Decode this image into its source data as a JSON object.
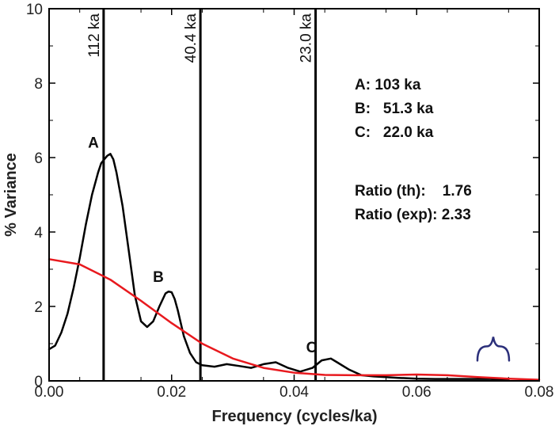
{
  "chart_data": {
    "type": "line",
    "title": "",
    "xlabel": "Frequency (cycles/ka)",
    "ylabel": "% Variance",
    "xlim": [
      0,
      0.08
    ],
    "ylim": [
      0,
      10
    ],
    "x_ticks": [
      "0.00",
      "0.02",
      "0.04",
      "0.06",
      "0.08"
    ],
    "y_ticks": [
      "0",
      "2",
      "4",
      "6",
      "8",
      "10"
    ],
    "grid": false,
    "series": [
      {
        "color": "#000000",
        "x": [
          0,
          0.001,
          0.002,
          0.003,
          0.004,
          0.005,
          0.006,
          0.007,
          0.008,
          0.0085,
          0.009,
          0.0095,
          0.01,
          0.0105,
          0.011,
          0.012,
          0.013,
          0.014,
          0.015,
          0.016,
          0.017,
          0.018,
          0.019,
          0.0195,
          0.02,
          0.0205,
          0.021,
          0.022,
          0.023,
          0.024,
          0.025,
          0.027,
          0.029,
          0.031,
          0.033,
          0.035,
          0.037,
          0.039,
          0.041,
          0.043,
          0.0445,
          0.046,
          0.047,
          0.049,
          0.051,
          0.053,
          0.055,
          0.057,
          0.06,
          0.063,
          0.066,
          0.069,
          0.072,
          0.075
        ],
        "values": [
          0.85,
          0.95,
          1.3,
          1.8,
          2.5,
          3.3,
          4.2,
          5.0,
          5.6,
          5.85,
          5.95,
          6.05,
          6.1,
          5.95,
          5.6,
          4.7,
          3.5,
          2.3,
          1.6,
          1.45,
          1.6,
          2.0,
          2.35,
          2.4,
          2.38,
          2.2,
          1.9,
          1.2,
          0.75,
          0.5,
          0.42,
          0.38,
          0.45,
          0.4,
          0.35,
          0.45,
          0.5,
          0.35,
          0.25,
          0.35,
          0.55,
          0.6,
          0.5,
          0.3,
          0.15,
          0.12,
          0.1,
          0.08,
          0.06,
          0.05,
          0.05,
          0.05,
          0.05,
          0.03
        ]
      },
      {
        "color": "#e8191e",
        "x": [
          0,
          0.005,
          0.01,
          0.015,
          0.02,
          0.025,
          0.03,
          0.035,
          0.04,
          0.045,
          0.05,
          0.055,
          0.06,
          0.065,
          0.07,
          0.075,
          0.08
        ],
        "values": [
          3.27,
          3.13,
          2.72,
          2.15,
          1.55,
          1.0,
          0.6,
          0.35,
          0.22,
          0.16,
          0.15,
          0.15,
          0.17,
          0.15,
          0.1,
          0.06,
          0.03
        ]
      }
    ],
    "vertical_lines": [
      {
        "x": 0.0089,
        "label": "112 ka"
      },
      {
        "x": 0.0247,
        "label": "40.4 ka"
      },
      {
        "x": 0.0435,
        "label": "23.0 ka"
      }
    ],
    "peak_labels": [
      {
        "text": "A",
        "x": 0.0089,
        "y": 6.35
      },
      {
        "text": "B",
        "x": 0.0195,
        "y": 2.75
      },
      {
        "text": "C",
        "x": 0.0445,
        "y": 0.85
      }
    ],
    "legend_text": [
      "A: 103 ka",
      "B:   51.3 ka",
      "C:   22.0 ka"
    ],
    "ratios": [
      "Ratio (th):    1.76",
      "Ratio (exp): 2.33"
    ],
    "brace": {
      "symbol": "{",
      "x": 0.0725,
      "y": 0.8,
      "color": "#2b2f7a"
    }
  }
}
